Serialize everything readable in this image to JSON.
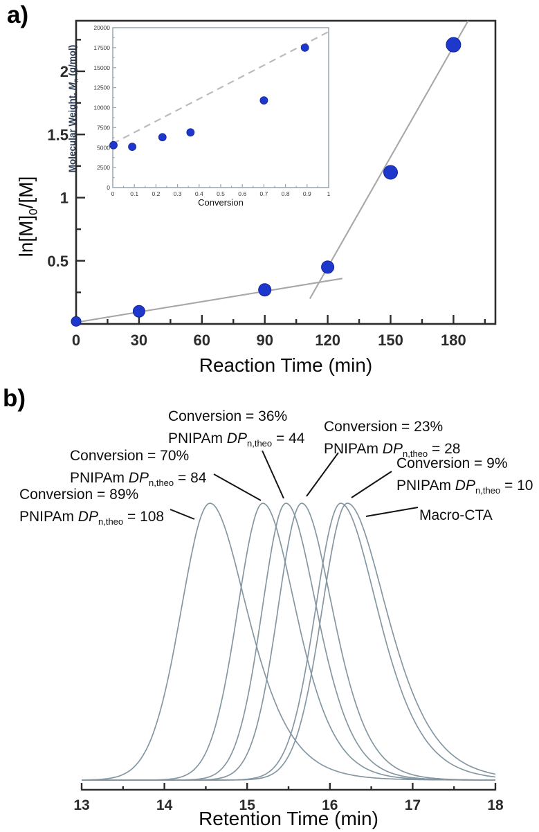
{
  "figure": {
    "panel_a_tag": "a)",
    "panel_b_tag": "b)"
  },
  "colors": {
    "axis": "#2c2c2c",
    "tick_text": "#2b2b2b",
    "point_blue": "#1d38cb",
    "point_blue_edge": "#13239d",
    "fit_line_gray": "#a7a7a7",
    "dashed_gray": "#bbbbbb",
    "inset_frame": "#97a6ad",
    "inset_tick_text": "#3a3a3a",
    "gpc_curve": "#8497a2",
    "leader_line": "#141414"
  },
  "chart_data": [
    {
      "id": "kinetics",
      "type": "scatter",
      "xlabel": "Reaction Time (min)",
      "ylabel": "ln[M]0/[M]",
      "ylabel_parts": [
        "ln[M]",
        "0",
        "/[M]"
      ],
      "xlim": [
        0,
        200
      ],
      "ylim": [
        0,
        2.4
      ],
      "x_major_ticks": [
        0,
        30,
        60,
        90,
        120,
        150,
        180
      ],
      "x_minor_step": 15,
      "y_major_ticks": [
        0.5,
        1,
        1.5,
        2
      ],
      "y_minor_step": 0.25,
      "grid": false,
      "points": [
        [
          0,
          0.02
        ],
        [
          30,
          0.1
        ],
        [
          90,
          0.27
        ],
        [
          120,
          0.45
        ],
        [
          150,
          1.2
        ],
        [
          180,
          2.21
        ]
      ],
      "marker_radius_px": [
        7,
        8.5,
        9,
        9,
        10,
        10.5
      ],
      "fit_lines": [
        {
          "name": "slow-regime-fit",
          "x1": 1,
          "y1": 0.015,
          "x2": 127,
          "y2": 0.36
        },
        {
          "name": "fast-regime-fit",
          "x1": 111.5,
          "y1": 0.2,
          "x2": 187,
          "y2": 2.4
        }
      ]
    },
    {
      "id": "inset-mn-vs-conversion",
      "type": "scatter",
      "xlabel": "Conversion",
      "ylabel": "Molecular Weight, Mn (g/mol)",
      "ylabel_parts": [
        "Molecular Weight, ",
        "M",
        "n",
        " (g/mol)"
      ],
      "xlim": [
        0,
        1
      ],
      "ylim": [
        0,
        20000
      ],
      "x_major_step": 0.1,
      "x_minor_step": 0.05,
      "y_major_step": 2500,
      "y_minor_step": 1250,
      "grid": false,
      "points": [
        [
          0,
          5300
        ],
        [
          0.09,
          5100
        ],
        [
          0.23,
          6300
        ],
        [
          0.36,
          6900
        ],
        [
          0.7,
          10900
        ],
        [
          0.89,
          17500
        ]
      ],
      "theory_dashed_line": {
        "x1": 0,
        "y1": 5500,
        "x2": 1,
        "y2": 19500
      }
    },
    {
      "id": "gpc-traces",
      "type": "line",
      "xlabel": "Retention Time (min)",
      "xlim": [
        13,
        18
      ],
      "x_major_ticks": [
        13,
        14,
        15,
        16,
        17,
        18
      ],
      "x_minor_step": 0.5,
      "grid": false,
      "series": [
        {
          "name": "PNIPAm DPn,theo = 108",
          "conversion": "89%",
          "dp": 108,
          "peak_min": 14.55,
          "sigma_left": 0.34,
          "sigma_right": 0.4,
          "height": 1.0
        },
        {
          "name": "PNIPAm DPn,theo = 84",
          "conversion": "70%",
          "dp": 84,
          "peak_min": 15.19,
          "sigma_left": 0.3,
          "sigma_right": 0.36,
          "height": 1.0
        },
        {
          "name": "PNIPAm DPn,theo = 44",
          "conversion": "36%",
          "dp": 44,
          "peak_min": 15.47,
          "sigma_left": 0.285,
          "sigma_right": 0.34,
          "height": 1.0
        },
        {
          "name": "PNIPAm DPn,theo = 28",
          "conversion": "23%",
          "dp": 28,
          "peak_min": 15.66,
          "sigma_left": 0.285,
          "sigma_right": 0.34,
          "height": 1.0
        },
        {
          "name": "PNIPAm DPn,theo = 10",
          "conversion": "9%",
          "dp": 10,
          "peak_min": 16.13,
          "sigma_left": 0.3,
          "sigma_right": 0.4,
          "height": 1.0
        },
        {
          "name": "Macro-CTA",
          "conversion": "",
          "dp": null,
          "peak_min": 16.21,
          "sigma_left": 0.3,
          "sigma_right": 0.42,
          "height": 1.0
        }
      ]
    }
  ],
  "panel_b": {
    "annotations": [
      {
        "line1": "Conversion = 89%",
        "line2_prefix": "PNIPAm ",
        "line2_dp": "DP",
        "line2_sub": "n,theo",
        "line2_value": " = 108"
      },
      {
        "line1": "Conversion = 70%",
        "line2_prefix": "PNIPAm ",
        "line2_dp": "DP",
        "line2_sub": "n,theo",
        "line2_value": " = 84"
      },
      {
        "line1": "Conversion = 36%",
        "line2_prefix": "PNIPAm ",
        "line2_dp": "DP",
        "line2_sub": "n,theo",
        "line2_value": " = 44"
      },
      {
        "line1": "Conversion = 23%",
        "line2_prefix": "PNIPAm ",
        "line2_dp": "DP",
        "line2_sub": "n,theo",
        "line2_value": " = 28"
      },
      {
        "line1": "Conversion = 9%",
        "line2_prefix": "PNIPAm ",
        "line2_dp": "DP",
        "line2_sub": "n,theo",
        "line2_value": " = 10"
      },
      {
        "line1": "Macro-CTA"
      }
    ]
  }
}
